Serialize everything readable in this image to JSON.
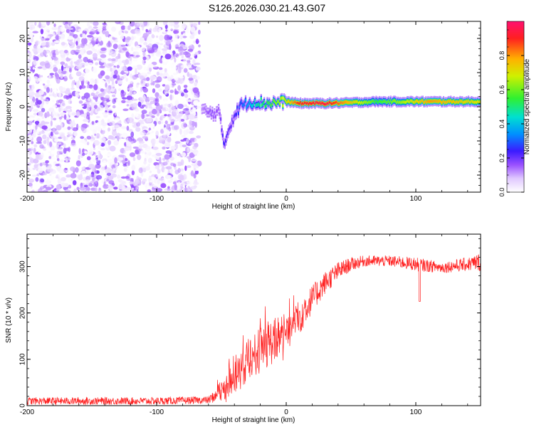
{
  "title": "S126.2026.030.21.43.G07",
  "chart_data": [
    {
      "type": "heatmap",
      "name": "spectrogram",
      "xlabel": "Height of straight line (km)",
      "ylabel": "Frequency (Hz)",
      "xlim": [
        -200,
        150
      ],
      "ylim": [
        -25,
        25
      ],
      "xticks": [
        -200,
        -100,
        0,
        100
      ],
      "yticks": [
        -20,
        -10,
        0,
        10,
        20
      ],
      "colorbar": {
        "label": "Normalized spectral amplitude",
        "range": [
          0.0,
          1.0
        ],
        "ticks": [
          0.0,
          0.2,
          0.4,
          0.6,
          0.8
        ]
      },
      "noise_region": {
        "x_range": [
          -200,
          -67
        ],
        "y_range": [
          -25,
          25
        ],
        "amplitude_range": [
          0.0,
          0.15
        ]
      },
      "ridge": [
        {
          "x": -65,
          "freq": -1.0,
          "amp": 0.12
        },
        {
          "x": -58,
          "freq": -2.0,
          "amp": 0.18
        },
        {
          "x": -52,
          "freq": -1.5,
          "amp": 0.15
        },
        {
          "x": -48,
          "freq": -11.0,
          "amp": 0.25
        },
        {
          "x": -42,
          "freq": -4.0,
          "amp": 0.2
        },
        {
          "x": -35,
          "freq": 0.5,
          "amp": 0.3
        },
        {
          "x": -25,
          "freq": 1.5,
          "amp": 0.45
        },
        {
          "x": -15,
          "freq": 1.0,
          "amp": 0.55
        },
        {
          "x": 0,
          "freq": 1.5,
          "amp": 0.7
        },
        {
          "x": 10,
          "freq": 1.0,
          "amp": 0.9
        },
        {
          "x": 30,
          "freq": 1.0,
          "amp": 0.95
        },
        {
          "x": 50,
          "freq": 1.2,
          "amp": 0.75
        },
        {
          "x": 70,
          "freq": 1.5,
          "amp": 0.55
        },
        {
          "x": 90,
          "freq": 1.5,
          "amp": 0.65
        },
        {
          "x": 110,
          "freq": 1.5,
          "amp": 0.8
        },
        {
          "x": 130,
          "freq": 1.5,
          "amp": 0.75
        },
        {
          "x": 150,
          "freq": 1.5,
          "amp": 0.7
        }
      ]
    },
    {
      "type": "line",
      "name": "snr",
      "xlabel": "Height of straight line (km)",
      "ylabel": "SNR (10 * v/v)",
      "xlim": [
        -200,
        150
      ],
      "ylim": [
        0,
        370
      ],
      "xticks": [
        -200,
        -100,
        0,
        100
      ],
      "yticks": [
        0,
        100,
        200,
        300
      ],
      "color": "#ff2020",
      "envelope": [
        {
          "x": -200,
          "mean": 10,
          "spread": 8
        },
        {
          "x": -100,
          "mean": 10,
          "spread": 8
        },
        {
          "x": -60,
          "mean": 12,
          "spread": 8
        },
        {
          "x": -50,
          "mean": 30,
          "spread": 20
        },
        {
          "x": -40,
          "mean": 60,
          "spread": 35
        },
        {
          "x": -30,
          "mean": 95,
          "spread": 45
        },
        {
          "x": -20,
          "mean": 120,
          "spread": 50
        },
        {
          "x": -10,
          "mean": 140,
          "spread": 50
        },
        {
          "x": 0,
          "mean": 160,
          "spread": 45
        },
        {
          "x": 10,
          "mean": 190,
          "spread": 40
        },
        {
          "x": 20,
          "mean": 230,
          "spread": 30
        },
        {
          "x": 30,
          "mean": 265,
          "spread": 25
        },
        {
          "x": 40,
          "mean": 290,
          "spread": 20
        },
        {
          "x": 50,
          "mean": 305,
          "spread": 15
        },
        {
          "x": 60,
          "mean": 312,
          "spread": 12
        },
        {
          "x": 80,
          "mean": 312,
          "spread": 12
        },
        {
          "x": 100,
          "mean": 305,
          "spread": 15
        },
        {
          "x": 120,
          "mean": 298,
          "spread": 12
        },
        {
          "x": 140,
          "mean": 305,
          "spread": 15
        },
        {
          "x": 150,
          "mean": 310,
          "spread": 20
        }
      ]
    }
  ]
}
